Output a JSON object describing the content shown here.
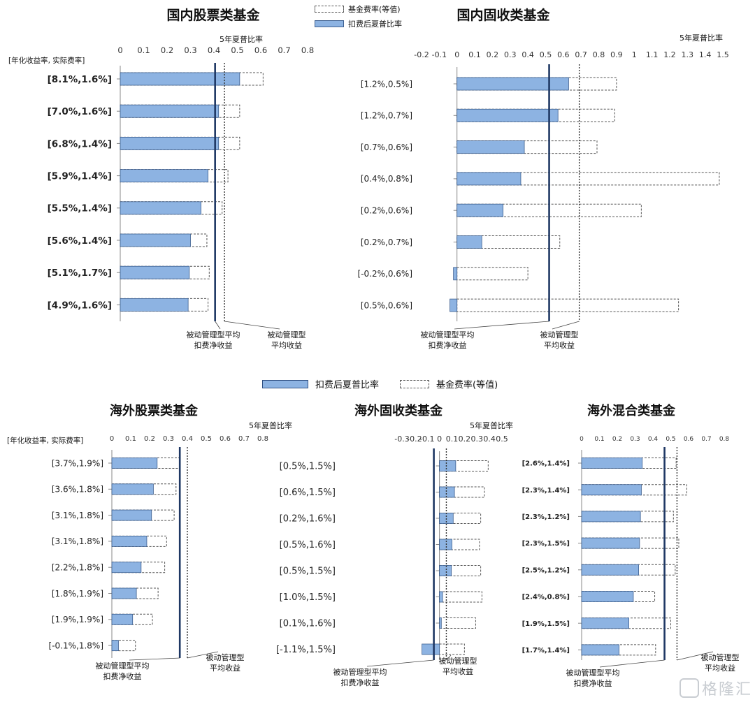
{
  "legend_top": {
    "fee_label": "基金费率(等值)",
    "sharpe_label": "扣费后夏普比率"
  },
  "legend_bottom": {
    "sharpe_label": "扣费后夏普比率",
    "fee_label": "基金费率(等值)"
  },
  "watermark": {
    "text": "格隆汇"
  },
  "colors": {
    "bar_fill": "#8db3e2",
    "bar_stroke": "#3d5f8f",
    "fee_stroke": "#555555",
    "passive_line": "#1f3864",
    "dotted_line": "#333333"
  },
  "chart_data": [
    {
      "id": "cn-equity",
      "type": "bar",
      "orientation": "horizontal",
      "title": "国内股票类基金",
      "xlabel": "5年夏普比率",
      "ylabel": "[年化收益率, 实际费率]",
      "xlim": [
        0,
        0.8
      ],
      "ticks": [
        "0",
        "0.1",
        "0.2",
        "0.3",
        "0.4",
        "0.5",
        "0.6",
        "0.7",
        "0.8"
      ],
      "categories": [
        "[8.1%,1.6%]",
        "[7.0%,1.6%]",
        "[6.8%,1.4%]",
        "[5.9%,1.4%]",
        "[5.5%,1.4%]",
        "[5.6%,1.4%]",
        "[5.1%,1.7%]",
        "[4.9%,1.6%]"
      ],
      "series": [
        {
          "name": "扣费后夏普比率",
          "values": [
            0.51,
            0.42,
            0.42,
            0.375,
            0.345,
            0.3,
            0.295,
            0.29
          ]
        },
        {
          "name": "基金费率(等值)",
          "values": [
            0.61,
            0.51,
            0.51,
            0.46,
            0.435,
            0.37,
            0.38,
            0.375
          ]
        }
      ],
      "ref_solid": {
        "value": 0.405,
        "label": [
          "被动管理型平均",
          "扣费净收益"
        ]
      },
      "ref_dotted": {
        "value": 0.445,
        "label": [
          "被动管理型",
          "平均收益"
        ]
      }
    },
    {
      "id": "cn-fixed",
      "type": "bar",
      "orientation": "horizontal",
      "title": "国内固收类基金",
      "xlabel": "5年夏普比率",
      "ylabel": "",
      "xlim": [
        -0.2,
        1.5
      ],
      "ticks": [
        "-0.2",
        "-0.1",
        "0",
        "0.1",
        "0.2",
        "0.3",
        "0.4",
        "0.5",
        "0.6",
        "0.7",
        "0.8",
        "0.9",
        "1",
        "1.1",
        "1.2",
        "1.3",
        "1.4",
        "1.5"
      ],
      "categories": [
        "[1.2%,0.5%]",
        "[1.2%,0.7%]",
        "[0.7%,0.6%]",
        "[0.4%,0.8%]",
        "[0.2%,0.6%]",
        "[0.2%,0.7%]",
        "[-0.2%,0.6%]",
        "[0.5%,0.6%]"
      ],
      "series": [
        {
          "name": "扣费后夏普比率",
          "values": [
            0.63,
            0.57,
            0.38,
            0.36,
            0.26,
            0.14,
            -0.02,
            -0.04
          ]
        },
        {
          "name": "基金费率(等值)",
          "values": [
            0.9,
            0.89,
            0.79,
            1.48,
            1.04,
            0.58,
            0.4,
            1.25
          ]
        }
      ],
      "ref_solid": {
        "value": 0.52,
        "label": [
          "被动管理型平均",
          "扣费净收益"
        ]
      },
      "ref_dotted": {
        "value": 0.69,
        "label": [
          "被动管理型",
          "平均收益"
        ]
      }
    },
    {
      "id": "os-equity",
      "type": "bar",
      "orientation": "horizontal",
      "title": "海外股票类基金",
      "xlabel": "5年夏普比率",
      "ylabel": "[年化收益率, 实际费率]",
      "xlim": [
        0,
        0.8
      ],
      "ticks": [
        "0",
        "0.1",
        "0.2",
        "0.3",
        "0.4",
        "0.5",
        "0.6",
        "0.7",
        "0.8"
      ],
      "categories": [
        "[3.7%,1.9%]",
        "[3.6%,1.8%]",
        "[3.1%,1.8%]",
        "[3.1%,1.8%]",
        "[2.2%,1.8%]",
        "[1.8%,1.9%]",
        "[1.9%,1.9%]",
        "[-0.1%,1.8%]"
      ],
      "series": [
        {
          "name": "扣费后夏普比率",
          "values": [
            0.24,
            0.22,
            0.21,
            0.185,
            0.155,
            0.13,
            0.11,
            0.035
          ]
        },
        {
          "name": "基金费率(等值)",
          "values": [
            0.36,
            0.34,
            0.33,
            0.29,
            0.28,
            0.245,
            0.215,
            0.125
          ]
        }
      ],
      "ref_solid": {
        "value": 0.36,
        "label": [
          "被动管理型平均",
          "扣费净收益"
        ]
      },
      "ref_dotted": {
        "value": 0.4,
        "label": [
          "被动管理型",
          "平均收益"
        ]
      }
    },
    {
      "id": "os-fixed",
      "type": "bar",
      "orientation": "horizontal",
      "title": "海外固收类基金",
      "xlabel": "5年夏普比率",
      "ylabel": "",
      "xlim": [
        -0.3,
        0.5
      ],
      "ticks": [
        "-0.3",
        "-0.2",
        "-0.1",
        "0",
        "0.1",
        "0.2",
        "0.3",
        "0.4",
        "0.5"
      ],
      "categories": [
        "[0.5%,1.5%]",
        "[0.6%,1.5%]",
        "[0.2%,1.6%]",
        "[0.5%,1.6%]",
        "[0.5%,1.5%]",
        "[1.0%,1.5%]",
        "[0.1%,1.6%]",
        "[-1.1%,1.5%]"
      ],
      "series": [
        {
          "name": "扣费后夏普比率",
          "values": [
            0.13,
            0.12,
            0.11,
            0.1,
            0.095,
            0.025,
            0.015,
            -0.14
          ]
        },
        {
          "name": "基金费率(等值)",
          "values": [
            0.39,
            0.36,
            0.33,
            0.32,
            0.33,
            0.34,
            0.29,
            0.2
          ]
        }
      ],
      "ref_solid": {
        "value": -0.045,
        "label": [
          "被动管理型平均",
          "扣费净收益"
        ]
      },
      "ref_dotted": {
        "value": 0.055,
        "label": [
          "被动管理型",
          "平均收益"
        ]
      }
    },
    {
      "id": "os-mixed",
      "type": "bar",
      "orientation": "horizontal",
      "title": "海外混合类基金",
      "xlabel": "",
      "ylabel": "",
      "xlim": [
        0,
        0.8
      ],
      "ticks": [
        "0",
        "0.1",
        "0.2",
        "0.3",
        "0.4",
        "0.5",
        "0.6",
        "0.7",
        "0.8"
      ],
      "categories": [
        "[2.6%,1.4%]",
        "[2.3%,1.4%]",
        "[2.3%,1.2%]",
        "[2.3%,1.5%]",
        "[2.5%,1.2%]",
        "[2.4%,0.8%]",
        "[1.9%,1.5%]",
        "[1.7%,1.4%]"
      ],
      "series": [
        {
          "name": "扣费后夏普比率",
          "values": [
            0.34,
            0.335,
            0.33,
            0.325,
            0.32,
            0.29,
            0.265,
            0.21
          ]
        },
        {
          "name": "基金费率(等值)",
          "values": [
            0.53,
            0.59,
            0.515,
            0.545,
            0.525,
            0.41,
            0.5,
            0.415
          ]
        }
      ],
      "ref_solid": {
        "value": 0.465,
        "label": [
          "被动管理型平均",
          "扣费净收益"
        ]
      },
      "ref_dotted": {
        "value": 0.535,
        "label": [
          "被动管理型",
          "平均收益"
        ]
      }
    }
  ]
}
